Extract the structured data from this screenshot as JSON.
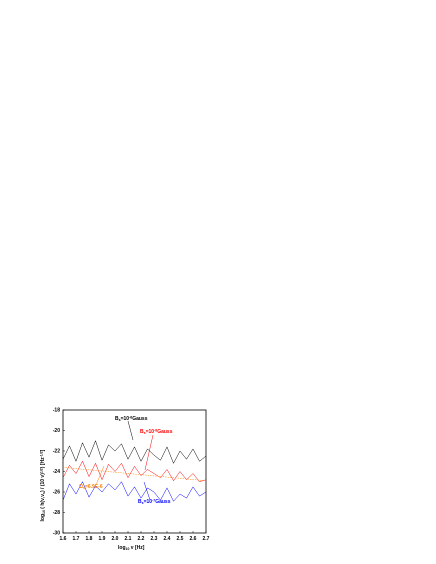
{
  "chart_data": {
    "type": "line",
    "xlabel_parts": [
      "log",
      "10",
      " ν [Hz]"
    ],
    "ylabel_parts": [
      "log",
      "10",
      " ( h(ν,ν",
      "s",
      ") / (10 ν)",
      "1/2",
      ")   [Hz",
      "-1/2",
      "]"
    ],
    "x": [
      1.6,
      1.65,
      1.7,
      1.75,
      1.8,
      1.85,
      1.9,
      1.95,
      2.0,
      2.05,
      2.1,
      2.15,
      2.2,
      2.25,
      2.3,
      2.35,
      2.4,
      2.45,
      2.5,
      2.55,
      2.6,
      2.65,
      2.7
    ],
    "series": [
      {
        "color": "#000000",
        "values": [
          -22.8,
          -21.5,
          -23.0,
          -21.2,
          -22.6,
          -21.0,
          -22.9,
          -21.4,
          -22.0,
          -21.3,
          -22.8,
          -21.6,
          -23.0,
          -21.8,
          -22.4,
          -22.9,
          -21.6,
          -23.2,
          -22.0,
          -22.8,
          -21.8,
          -23.0,
          -22.5
        ]
      },
      {
        "color": "#ff0000",
        "values": [
          -24.6,
          -23.4,
          -24.2,
          -23.0,
          -24.5,
          -23.2,
          -24.8,
          -23.3,
          -24.0,
          -23.2,
          -24.6,
          -23.5,
          -24.4,
          -23.8,
          -24.2,
          -24.6,
          -23.8,
          -24.9,
          -24.0,
          -24.8,
          -24.2,
          -25.0,
          -24.8
        ]
      },
      {
        "color": "#0000ff",
        "values": [
          -26.8,
          -25.2,
          -26.2,
          -25.0,
          -26.5,
          -25.4,
          -26.0,
          -25.2,
          -25.8,
          -25.0,
          -26.4,
          -25.5,
          -26.6,
          -25.6,
          -26.0,
          -26.8,
          -25.6,
          -26.9,
          -26.2,
          -26.6,
          -25.5,
          -26.4,
          -26.0
        ]
      },
      {
        "color": "#ff8000",
        "dashed": true,
        "x": [
          1.6,
          2.7
        ],
        "values": [
          -23.6,
          -24.9
        ]
      }
    ],
    "annotations": [
      {
        "color": "#000000",
        "parts": [
          "B",
          "s",
          "=10",
          "-6",
          "Gauss"
        ]
      },
      {
        "color": "#ff0000",
        "parts": [
          "B",
          "s",
          "=10",
          "-8",
          "Gauss"
        ]
      },
      {
        "color": "#ff8000",
        "parts": [
          "Ω",
          "s",
          "=6.9E-6"
        ]
      },
      {
        "color": "#0000ff",
        "parts": [
          "B",
          "s",
          "=10",
          "-7",
          "Gauss"
        ]
      }
    ],
    "xlim": [
      1.6,
      2.7
    ],
    "xticks": [
      1.6,
      1.7,
      1.8,
      1.9,
      {
        "value": 2,
        "label": "2.0"
      },
      2.1,
      2.2,
      2.3,
      2.4,
      2.5,
      2.6,
      2.7
    ],
    "ylim": [
      -30,
      -18
    ],
    "yticks": [
      -30,
      -28,
      -26,
      -24,
      -22,
      -20,
      -18
    ]
  }
}
